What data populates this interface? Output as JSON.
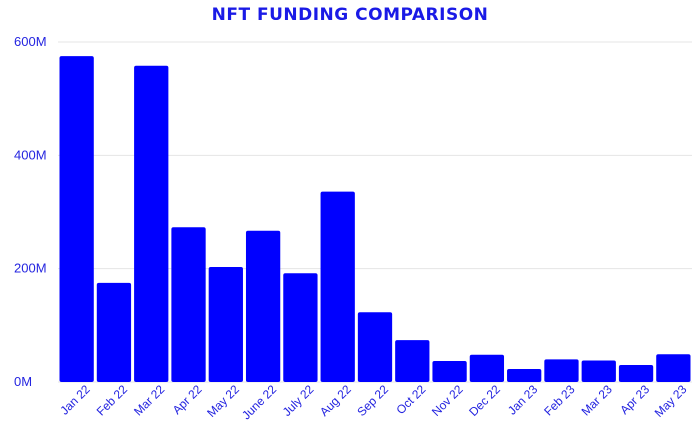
{
  "chart_data": {
    "type": "bar",
    "title": "NFT FUNDING COMPARISON",
    "xlabel": "",
    "ylabel": "",
    "ylim": [
      0,
      600
    ],
    "yticks": [
      0,
      200,
      400,
      600
    ],
    "ytick_labels": [
      "0M",
      "200M",
      "400M",
      "600M"
    ],
    "grid": true,
    "bar_color": "#0000ff",
    "text_color": "#2424e0",
    "categories": [
      "Jan 22",
      "Feb 22",
      "Mar 22",
      "Apr 22",
      "May 22",
      "June 22",
      "July 22",
      "Aug 22",
      "Sep 22",
      "Oct 22",
      "Nov 22",
      "Dec 22",
      "Jan 23",
      "Feb 23",
      "Mar 23",
      "Apr 23",
      "May 23"
    ],
    "values": [
      575,
      175,
      558,
      273,
      203,
      267,
      192,
      336,
      123,
      74,
      37,
      48,
      23,
      40,
      38,
      30,
      49
    ]
  }
}
